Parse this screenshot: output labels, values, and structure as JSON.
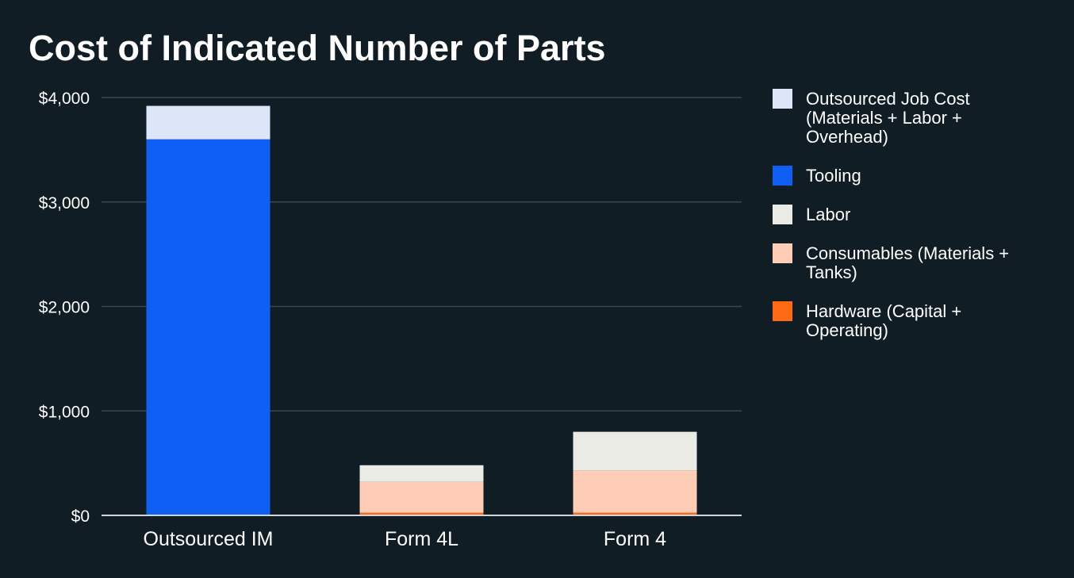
{
  "chart_data": {
    "type": "bar",
    "stacked": true,
    "title": "Cost of Indicated Number of Parts",
    "xlabel": "",
    "ylabel": "",
    "ylim": [
      0,
      4000
    ],
    "yticks": [
      0,
      1000,
      2000,
      3000,
      4000
    ],
    "ytick_labels": [
      "$0",
      "$1,000",
      "$2,000",
      "$3,000",
      "$4,000"
    ],
    "grid": true,
    "legend_position": "right",
    "categories": [
      "Outsourced IM",
      "Form 4L",
      "Form 4"
    ],
    "series": [
      {
        "name": "Hardware (Capital + Operating)",
        "legend_lines": [
          "Hardware (Capital +",
          "Operating)"
        ],
        "color": "#ff6a13",
        "values": [
          0,
          25,
          25
        ]
      },
      {
        "name": "Consumables (Materials + Tanks)",
        "legend_lines": [
          "Consumables (Materials +",
          "Tanks)"
        ],
        "color": "#ffcdb5",
        "values": [
          0,
          295,
          405
        ]
      },
      {
        "name": "Labor",
        "legend_lines": [
          "Labor"
        ],
        "color": "#ebebe6",
        "values": [
          0,
          160,
          370
        ]
      },
      {
        "name": "Tooling",
        "legend_lines": [
          "Tooling"
        ],
        "color": "#0f5ff5",
        "values": [
          3600,
          0,
          0
        ]
      },
      {
        "name": "Outsourced Job Cost (Materials + Labor + Overhead)",
        "legend_lines": [
          "Outsourced Job Cost",
          "(Materials + Labor +",
          "Overhead)"
        ],
        "color": "#dce6f8",
        "values": [
          320,
          0,
          0
        ]
      }
    ],
    "legend_order": [
      4,
      3,
      2,
      1,
      0
    ]
  }
}
